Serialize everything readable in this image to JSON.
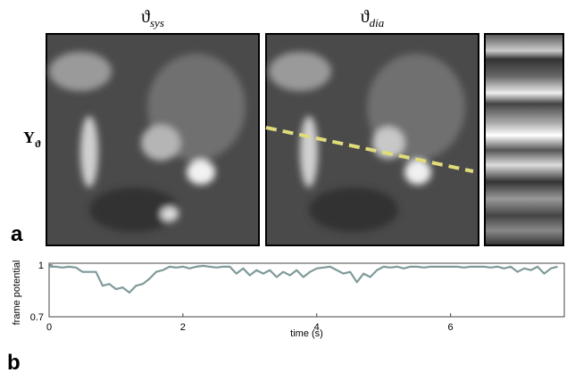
{
  "figure": {
    "panel_a": {
      "label": "a",
      "left_title": {
        "symbol": "ϑ",
        "subscript": "sys"
      },
      "right_title": {
        "symbol": "ϑ",
        "subscript": "dia"
      },
      "y_label": {
        "symbol": "Y",
        "subscript": "ϑ"
      }
    },
    "panel_b": {
      "label": "b"
    }
  },
  "chart_data": {
    "type": "line",
    "x_label": "time (s)",
    "y_label": "frame potential",
    "x": [
      0,
      0.1,
      0.2,
      0.3,
      0.4,
      0.5,
      0.6,
      0.7,
      0.8,
      0.9,
      1.0,
      1.1,
      1.2,
      1.3,
      1.4,
      1.5,
      1.6,
      1.7,
      1.8,
      1.9,
      2.0,
      2.1,
      2.2,
      2.3,
      2.4,
      2.5,
      2.6,
      2.7,
      2.8,
      2.9,
      3.0,
      3.1,
      3.2,
      3.3,
      3.4,
      3.5,
      3.6,
      3.7,
      3.8,
      3.9,
      4.0,
      4.1,
      4.2,
      4.3,
      4.4,
      4.5,
      4.6,
      4.7,
      4.8,
      4.9,
      5.0,
      5.1,
      5.2,
      5.3,
      5.4,
      5.5,
      5.6,
      5.7,
      5.8,
      5.9,
      6.0,
      6.1,
      6.2,
      6.3,
      6.4,
      6.5,
      6.6,
      6.7,
      6.8,
      6.9,
      7.0,
      7.1,
      7.2,
      7.3,
      7.4,
      7.5,
      7.6
    ],
    "series": [
      {
        "color": "#7f9a9a",
        "values": [
          0.99,
          0.99,
          0.985,
          0.99,
          0.985,
          0.96,
          0.96,
          0.96,
          0.88,
          0.89,
          0.86,
          0.87,
          0.84,
          0.88,
          0.89,
          0.92,
          0.96,
          0.97,
          0.99,
          0.985,
          0.99,
          0.98,
          0.99,
          0.995,
          0.99,
          0.985,
          0.99,
          0.99,
          0.95,
          0.98,
          0.94,
          0.97,
          0.95,
          0.97,
          0.93,
          0.96,
          0.94,
          0.97,
          0.93,
          0.96,
          0.98,
          0.985,
          0.99,
          0.97,
          0.95,
          0.96,
          0.9,
          0.95,
          0.93,
          0.97,
          0.99,
          0.985,
          0.99,
          0.98,
          0.99,
          0.99,
          0.985,
          0.99,
          0.99,
          0.99,
          0.99,
          0.99,
          0.985,
          0.99,
          0.99,
          0.99,
          0.985,
          0.99,
          0.98,
          0.99,
          0.96,
          0.98,
          0.97,
          0.99,
          0.95,
          0.98,
          0.99
        ]
      }
    ],
    "xlim": [
      0,
      7.7
    ],
    "ylim": [
      0.7,
      1.01
    ],
    "xticks": [
      0,
      2,
      4,
      6
    ],
    "yticks": [
      0.7,
      1
    ]
  }
}
